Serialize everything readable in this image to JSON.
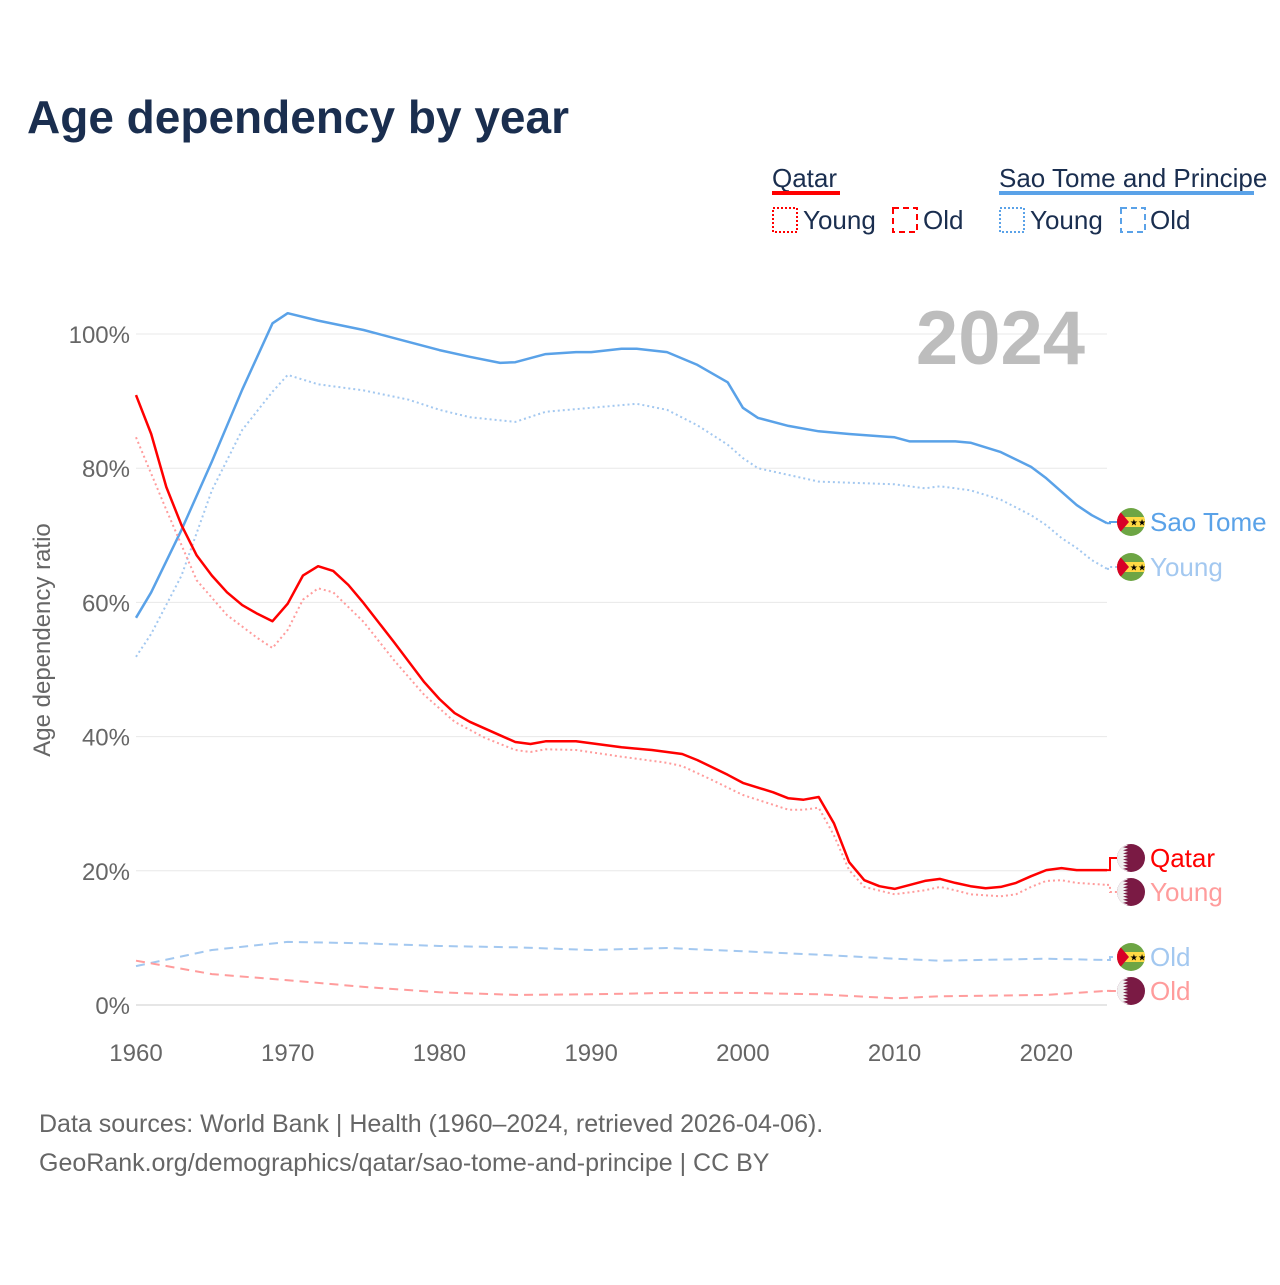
{
  "chart_data": {
    "type": "line",
    "title": "Age dependency by year",
    "ylabel": "Age dependency ratio",
    "xlabel": "",
    "xlim": [
      1960,
      2024
    ],
    "ylim": [
      0,
      100
    ],
    "x_ticks": [
      "1960",
      "1970",
      "1980",
      "1990",
      "2000",
      "2010",
      "2020"
    ],
    "y_ticks": [
      "0%",
      "20%",
      "40%",
      "60%",
      "80%",
      "100%"
    ],
    "grid": true,
    "year_watermark": "2024",
    "legend": {
      "placement": "top-right",
      "groups": [
        {
          "name": "Qatar",
          "color": "#ff0000",
          "items": [
            "Young",
            "Old"
          ]
        },
        {
          "name": "Sao Tome and Principe",
          "color": "#5aa2e8",
          "items": [
            "Young",
            "Old"
          ]
        }
      ]
    },
    "series": [
      {
        "name": "Sao Tome",
        "country": "Sao Tome and Principe",
        "kind": "total",
        "color": "#5aa2e8",
        "dash": "solid",
        "points": [
          [
            1960,
            57.7
          ],
          [
            1961,
            61.5
          ],
          [
            1963,
            70.8
          ],
          [
            1965,
            81
          ],
          [
            1967,
            91.7
          ],
          [
            1969,
            101.6
          ],
          [
            1970,
            103.1
          ],
          [
            1972,
            102
          ],
          [
            1975,
            100.6
          ],
          [
            1978,
            98.8
          ],
          [
            1980,
            97.6
          ],
          [
            1982,
            96.6
          ],
          [
            1984,
            95.7
          ],
          [
            1985,
            95.8
          ],
          [
            1987,
            97
          ],
          [
            1989,
            97.3
          ],
          [
            1990,
            97.3
          ],
          [
            1992,
            97.8
          ],
          [
            1993,
            97.8
          ],
          [
            1995,
            97.3
          ],
          [
            1997,
            95.4
          ],
          [
            1999,
            92.8
          ],
          [
            2000,
            89
          ],
          [
            2001,
            87.5
          ],
          [
            2003,
            86.3
          ],
          [
            2005,
            85.5
          ],
          [
            2007,
            85.1
          ],
          [
            2010,
            84.6
          ],
          [
            2011,
            84
          ],
          [
            2014,
            84
          ],
          [
            2015,
            83.8
          ],
          [
            2017,
            82.4
          ],
          [
            2019,
            80.2
          ],
          [
            2020,
            78.5
          ],
          [
            2021,
            76.5
          ],
          [
            2022,
            74.5
          ],
          [
            2023,
            73
          ],
          [
            2024,
            71.8
          ]
        ]
      },
      {
        "name": "Young",
        "country": "Sao Tome and Principe",
        "kind": "young",
        "color": "#a3c8f0",
        "dash": "dotted",
        "points": [
          [
            1960,
            51.9
          ],
          [
            1961,
            55.3
          ],
          [
            1963,
            64
          ],
          [
            1965,
            76.7
          ],
          [
            1967,
            85.7
          ],
          [
            1969,
            91.4
          ],
          [
            1970,
            93.9
          ],
          [
            1972,
            92.5
          ],
          [
            1975,
            91.6
          ],
          [
            1978,
            90.2
          ],
          [
            1980,
            88.7
          ],
          [
            1982,
            87.6
          ],
          [
            1985,
            86.9
          ],
          [
            1987,
            88.4
          ],
          [
            1990,
            89
          ],
          [
            1993,
            89.6
          ],
          [
            1995,
            88.7
          ],
          [
            1997,
            86.4
          ],
          [
            1999,
            83.5
          ],
          [
            2000,
            81.5
          ],
          [
            2001,
            80
          ],
          [
            2005,
            78
          ],
          [
            2010,
            77.6
          ],
          [
            2012,
            77
          ],
          [
            2013,
            77.3
          ],
          [
            2015,
            76.7
          ],
          [
            2017,
            75.3
          ],
          [
            2019,
            73
          ],
          [
            2020,
            71.5
          ],
          [
            2021,
            69.6
          ],
          [
            2022,
            68.1
          ],
          [
            2023,
            66.3
          ],
          [
            2024,
            65
          ]
        ]
      },
      {
        "name": "Old",
        "country": "Sao Tome and Principe",
        "kind": "old",
        "color": "#a3c8f0",
        "dash": "dashed",
        "points": [
          [
            1960,
            5.8
          ],
          [
            1965,
            8.2
          ],
          [
            1970,
            9.4
          ],
          [
            1975,
            9.2
          ],
          [
            1980,
            8.8
          ],
          [
            1985,
            8.6
          ],
          [
            1990,
            8.2
          ],
          [
            1995,
            8.5
          ],
          [
            2000,
            8
          ],
          [
            2005,
            7.5
          ],
          [
            2010,
            6.9
          ],
          [
            2013,
            6.6
          ],
          [
            2020,
            6.9
          ],
          [
            2024,
            6.7
          ]
        ]
      },
      {
        "name": "Qatar",
        "country": "Qatar",
        "kind": "total",
        "color": "#ff0000",
        "dash": "solid",
        "points": [
          [
            1960,
            90.9
          ],
          [
            1961,
            85.1
          ],
          [
            1962,
            77.2
          ],
          [
            1963,
            71.5
          ],
          [
            1964,
            67
          ],
          [
            1965,
            64
          ],
          [
            1966,
            61.5
          ],
          [
            1967,
            59.6
          ],
          [
            1968,
            58.3
          ],
          [
            1969,
            57.2
          ],
          [
            1970,
            59.8
          ],
          [
            1971,
            64
          ],
          [
            1972,
            65.4
          ],
          [
            1973,
            64.7
          ],
          [
            1974,
            62.6
          ],
          [
            1975,
            59.9
          ],
          [
            1977,
            54.1
          ],
          [
            1979,
            48.1
          ],
          [
            1980,
            45.6
          ],
          [
            1981,
            43.5
          ],
          [
            1982,
            42.2
          ],
          [
            1984,
            40.2
          ],
          [
            1985,
            39.2
          ],
          [
            1986,
            38.9
          ],
          [
            1987,
            39.3
          ],
          [
            1989,
            39.3
          ],
          [
            1990,
            39
          ],
          [
            1992,
            38.4
          ],
          [
            1994,
            38
          ],
          [
            1996,
            37.4
          ],
          [
            1997,
            36.5
          ],
          [
            1999,
            34.3
          ],
          [
            2000,
            33.1
          ],
          [
            2002,
            31.7
          ],
          [
            2003,
            30.8
          ],
          [
            2004,
            30.6
          ],
          [
            2005,
            31
          ],
          [
            2006,
            27.1
          ],
          [
            2007,
            21.3
          ],
          [
            2008,
            18.6
          ],
          [
            2009,
            17.7
          ],
          [
            2010,
            17.3
          ],
          [
            2011,
            17.9
          ],
          [
            2012,
            18.5
          ],
          [
            2013,
            18.8
          ],
          [
            2014,
            18.2
          ],
          [
            2015,
            17.7
          ],
          [
            2016,
            17.4
          ],
          [
            2017,
            17.6
          ],
          [
            2018,
            18.2
          ],
          [
            2019,
            19.2
          ],
          [
            2020,
            20.1
          ],
          [
            2021,
            20.4
          ],
          [
            2022,
            20.1
          ],
          [
            2023,
            20.1
          ],
          [
            2024,
            20.1
          ]
        ]
      },
      {
        "name": "Young",
        "country": "Qatar",
        "kind": "young",
        "color": "#ff9c9c",
        "dash": "dotted",
        "points": [
          [
            1960,
            84.6
          ],
          [
            1962,
            73.8
          ],
          [
            1964,
            63.3
          ],
          [
            1966,
            58.1
          ],
          [
            1968,
            54.7
          ],
          [
            1969,
            53.2
          ],
          [
            1970,
            55.9
          ],
          [
            1971,
            60.4
          ],
          [
            1972,
            62.1
          ],
          [
            1973,
            61.5
          ],
          [
            1975,
            57.1
          ],
          [
            1977,
            51.4
          ],
          [
            1979,
            46.2
          ],
          [
            1981,
            42.2
          ],
          [
            1983,
            39.8
          ],
          [
            1985,
            38
          ],
          [
            1986,
            37.7
          ],
          [
            1987,
            38.1
          ],
          [
            1989,
            38
          ],
          [
            1992,
            37
          ],
          [
            1995,
            36.1
          ],
          [
            1996,
            35.6
          ],
          [
            1998,
            33.5
          ],
          [
            2000,
            31.3
          ],
          [
            2003,
            29.1
          ],
          [
            2004,
            29.1
          ],
          [
            2005,
            29.4
          ],
          [
            2006,
            25.3
          ],
          [
            2007,
            20.1
          ],
          [
            2008,
            17.6
          ],
          [
            2010,
            16.5
          ],
          [
            2012,
            17.1
          ],
          [
            2013,
            17.6
          ],
          [
            2014,
            17.1
          ],
          [
            2015,
            16.5
          ],
          [
            2017,
            16.2
          ],
          [
            2018,
            16.5
          ],
          [
            2019,
            17.6
          ],
          [
            2020,
            18.5
          ],
          [
            2021,
            18.6
          ],
          [
            2022,
            18.2
          ],
          [
            2024,
            17.9
          ]
        ]
      },
      {
        "name": "Old",
        "country": "Qatar",
        "kind": "old",
        "color": "#ff9c9c",
        "dash": "dashed",
        "points": [
          [
            1960,
            6.6
          ],
          [
            1965,
            4.6
          ],
          [
            1970,
            3.7
          ],
          [
            1975,
            2.7
          ],
          [
            1980,
            1.9
          ],
          [
            1985,
            1.5
          ],
          [
            1990,
            1.6
          ],
          [
            1995,
            1.8
          ],
          [
            2000,
            1.8
          ],
          [
            2005,
            1.6
          ],
          [
            2010,
            1.0
          ],
          [
            2013,
            1.3
          ],
          [
            2020,
            1.5
          ],
          [
            2024,
            2.1
          ]
        ]
      }
    ],
    "source_lines": [
      "Data sources: World Bank | Health (1960–2024, retrieved 2026-04-06).",
      "GeoRank.org/demographics/qatar/sao-tome-and-principe | CC BY"
    ]
  },
  "colors": {
    "title": "#1a2e4f",
    "axis_text": "#666666",
    "grid": "#e6e6e6",
    "watermark": "#bdbdbd"
  }
}
